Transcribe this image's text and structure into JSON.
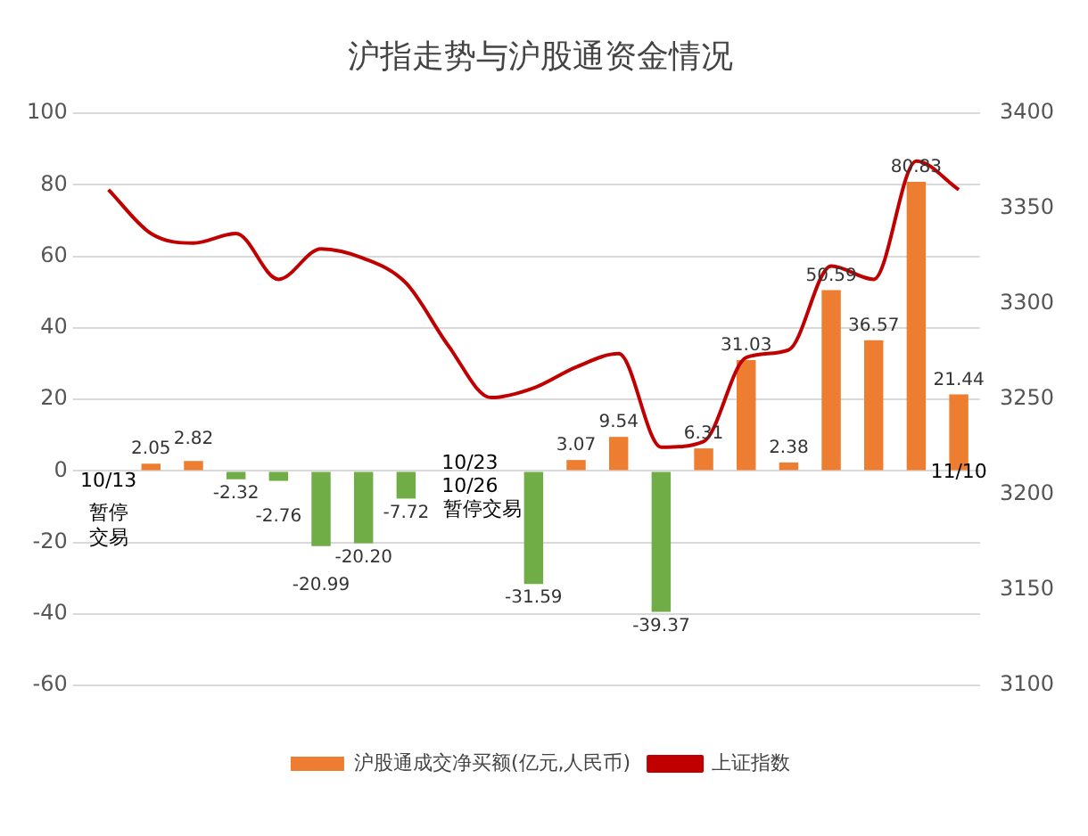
{
  "chart_data": {
    "type": "bar",
    "title": "沪指走势与沪股通资金情况",
    "categories": [
      null,
      null,
      null,
      null,
      null,
      null,
      null,
      null,
      null,
      null,
      null,
      null,
      null,
      null,
      null,
      null,
      null,
      null,
      null,
      null,
      null
    ],
    "series": [
      {
        "name": "沪股通成交净买额(亿元,人民币)",
        "color": "#ed7d31",
        "values": [
          null,
          2.05,
          2.82,
          -2.32,
          -2.76,
          -20.99,
          -20.2,
          -7.72,
          null,
          null,
          -31.59,
          3.07,
          9.54,
          -39.37,
          6.31,
          31.03,
          2.38,
          50.59,
          36.57,
          80.83,
          21.44
        ],
        "value_labels": [
          null,
          "2.05",
          "2.82",
          "-2.32",
          "-2.76",
          "-20.99",
          "-20.20",
          "-7.72",
          null,
          null,
          "-31.59",
          "3.07",
          "9.54",
          "-39.37",
          "6.31",
          "31.03",
          "2.38",
          "50.59",
          "36.57",
          "80.83",
          "21.44"
        ],
        "colors": [
          null,
          "#ed7d31",
          "#ed7d31",
          "#70ad47",
          "#70ad47",
          "#70ad47",
          "#70ad47",
          "#70ad47",
          null,
          null,
          "#70ad47",
          "#ed7d31",
          "#ed7d31",
          "#70ad47",
          "#ed7d31",
          "#ed7d31",
          "#ed7d31",
          "#ed7d31",
          "#ed7d31",
          "#ed7d31",
          "#ed7d31"
        ]
      },
      {
        "name": "上证指数",
        "type": "line",
        "axis": "y2",
        "color": "#c00000",
        "values": [
          3360,
          3337,
          3332,
          3337,
          3313,
          3329,
          3324,
          3311,
          3278,
          3251,
          3256,
          3267,
          3274,
          3225,
          3228,
          3272,
          3276,
          3320,
          3313,
          3375,
          3360
        ]
      }
    ],
    "ylim": [
      -60,
      100
    ],
    "yticks": [
      -60,
      -40,
      -20,
      0,
      20,
      40,
      60,
      80,
      100
    ],
    "y2lim": [
      3100,
      3400
    ],
    "y2ticks": [
      3100,
      3150,
      3200,
      3250,
      3300,
      3350,
      3400
    ],
    "grid": "y",
    "legend": "bottom",
    "marker": "none",
    "annotations": [
      "10/13",
      "暂停交易",
      "10/23",
      "10/26",
      "暂停交易",
      "11/10"
    ]
  }
}
